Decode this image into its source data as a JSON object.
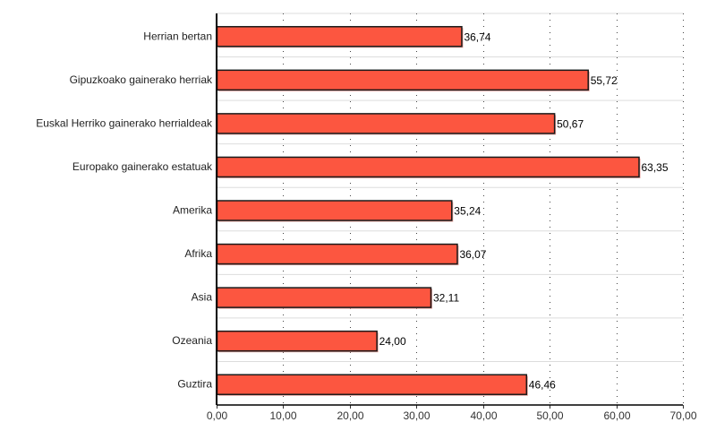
{
  "chart_data": {
    "type": "bar",
    "orientation": "horizontal",
    "categories": [
      "Herrian bertan",
      "Gipuzkoako gainerako herriak",
      "Euskal Herriko gainerako herrialdeak",
      "Europako gainerako estatuak",
      "Amerika",
      "Afrika",
      "Asia",
      "Ozeania",
      "Guztira"
    ],
    "values": [
      36.74,
      55.72,
      50.67,
      63.35,
      35.24,
      36.07,
      32.11,
      24.0,
      46.46
    ],
    "value_labels": [
      "36,74",
      "55,72",
      "50,67",
      "63,35",
      "35,24",
      "36,07",
      "32,11",
      "24,00",
      "46,46"
    ],
    "xlim": [
      0,
      70
    ],
    "x_ticks": [
      0,
      10,
      20,
      30,
      40,
      50,
      60,
      70
    ],
    "x_tick_labels": [
      "0,00",
      "10,00",
      "20,00",
      "30,00",
      "40,00",
      "50,00",
      "60,00",
      "70,00"
    ],
    "title": "",
    "xlabel": "",
    "ylabel": "",
    "grid": true,
    "colors": {
      "bar": "#fc5640",
      "bar_border": "#1a1a1a",
      "shadow": "#e8a09a",
      "grid": "#444444",
      "row_sep": "#dddddd"
    }
  }
}
